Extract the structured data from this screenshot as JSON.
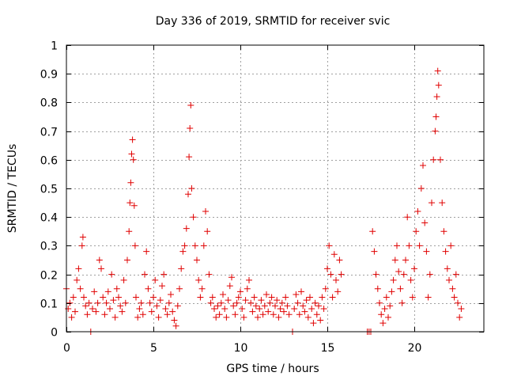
{
  "chart_data": {
    "type": "scatter",
    "title": "Day 336 of 2019, SRMTID for receiver svic",
    "xlabel": "GPS time / hours",
    "ylabel": "SRMTID / TECUs",
    "xlim": [
      0,
      24
    ],
    "ylim": [
      0,
      1
    ],
    "xticks": [
      0,
      5,
      10,
      15,
      20
    ],
    "yticks": [
      0,
      0.1,
      0.2,
      0.3,
      0.4,
      0.5,
      0.6,
      0.7,
      0.8,
      0.9,
      1
    ],
    "grid": true,
    "marker": "+",
    "color": "#e00000",
    "series": [
      {
        "name": "SRMTID",
        "points": [
          [
            0.0,
            0.15
          ],
          [
            0.1,
            0.08
          ],
          [
            0.2,
            0.1
          ],
          [
            0.3,
            0.05
          ],
          [
            0.4,
            0.12
          ],
          [
            0.5,
            0.07
          ],
          [
            0.6,
            0.18
          ],
          [
            0.7,
            0.22
          ],
          [
            0.8,
            0.15
          ],
          [
            0.9,
            0.3
          ],
          [
            0.95,
            0.33
          ],
          [
            1.0,
            0.12
          ],
          [
            1.1,
            0.09
          ],
          [
            1.2,
            0.06
          ],
          [
            1.3,
            0.1
          ],
          [
            1.4,
            0.0
          ],
          [
            1.5,
            0.08
          ],
          [
            1.6,
            0.14
          ],
          [
            1.7,
            0.07
          ],
          [
            1.8,
            0.1
          ],
          [
            1.9,
            0.25
          ],
          [
            2.0,
            0.22
          ],
          [
            2.1,
            0.12
          ],
          [
            2.2,
            0.06
          ],
          [
            2.3,
            0.1
          ],
          [
            2.4,
            0.14
          ],
          [
            2.5,
            0.08
          ],
          [
            2.6,
            0.2
          ],
          [
            2.7,
            0.11
          ],
          [
            2.8,
            0.05
          ],
          [
            2.9,
            0.15
          ],
          [
            3.0,
            0.12
          ],
          [
            3.1,
            0.09
          ],
          [
            3.2,
            0.07
          ],
          [
            3.3,
            0.18
          ],
          [
            3.4,
            0.1
          ],
          [
            3.5,
            0.25
          ],
          [
            3.6,
            0.35
          ],
          [
            3.65,
            0.45
          ],
          [
            3.7,
            0.52
          ],
          [
            3.75,
            0.62
          ],
          [
            3.8,
            0.67
          ],
          [
            3.85,
            0.6
          ],
          [
            3.9,
            0.44
          ],
          [
            3.95,
            0.3
          ],
          [
            4.0,
            0.12
          ],
          [
            4.1,
            0.05
          ],
          [
            4.2,
            0.08
          ],
          [
            4.3,
            0.1
          ],
          [
            4.4,
            0.06
          ],
          [
            4.5,
            0.2
          ],
          [
            4.6,
            0.28
          ],
          [
            4.7,
            0.15
          ],
          [
            4.8,
            0.1
          ],
          [
            4.9,
            0.07
          ],
          [
            5.0,
            0.12
          ],
          [
            5.1,
            0.18
          ],
          [
            5.2,
            0.09
          ],
          [
            5.3,
            0.05
          ],
          [
            5.4,
            0.11
          ],
          [
            5.5,
            0.16
          ],
          [
            5.6,
            0.2
          ],
          [
            5.7,
            0.08
          ],
          [
            5.8,
            0.06
          ],
          [
            5.9,
            0.1
          ],
          [
            6.0,
            0.13
          ],
          [
            6.1,
            0.07
          ],
          [
            6.2,
            0.04
          ],
          [
            6.3,
            0.02
          ],
          [
            6.4,
            0.09
          ],
          [
            6.5,
            0.15
          ],
          [
            6.6,
            0.22
          ],
          [
            6.7,
            0.28
          ],
          [
            6.8,
            0.3
          ],
          [
            6.9,
            0.36
          ],
          [
            7.0,
            0.48
          ],
          [
            7.05,
            0.61
          ],
          [
            7.1,
            0.71
          ],
          [
            7.15,
            0.79
          ],
          [
            7.2,
            0.5
          ],
          [
            7.3,
            0.4
          ],
          [
            7.4,
            0.3
          ],
          [
            7.5,
            0.25
          ],
          [
            7.6,
            0.18
          ],
          [
            7.7,
            0.12
          ],
          [
            7.8,
            0.15
          ],
          [
            7.9,
            0.3
          ],
          [
            8.0,
            0.42
          ],
          [
            8.1,
            0.35
          ],
          [
            8.2,
            0.2
          ],
          [
            8.3,
            0.1
          ],
          [
            8.4,
            0.12
          ],
          [
            8.5,
            0.08
          ],
          [
            8.6,
            0.05
          ],
          [
            8.7,
            0.09
          ],
          [
            8.8,
            0.06
          ],
          [
            8.9,
            0.1
          ],
          [
            9.0,
            0.13
          ],
          [
            9.1,
            0.08
          ],
          [
            9.2,
            0.05
          ],
          [
            9.3,
            0.11
          ],
          [
            9.4,
            0.16
          ],
          [
            9.5,
            0.19
          ],
          [
            9.6,
            0.09
          ],
          [
            9.7,
            0.06
          ],
          [
            9.8,
            0.1
          ],
          [
            9.9,
            0.12
          ],
          [
            10.0,
            0.14
          ],
          [
            10.1,
            0.08
          ],
          [
            10.2,
            0.05
          ],
          [
            10.3,
            0.11
          ],
          [
            10.4,
            0.15
          ],
          [
            10.5,
            0.18
          ],
          [
            10.6,
            0.1
          ],
          [
            10.7,
            0.07
          ],
          [
            10.8,
            0.12
          ],
          [
            10.9,
            0.09
          ],
          [
            11.0,
            0.05
          ],
          [
            11.1,
            0.08
          ],
          [
            11.2,
            0.11
          ],
          [
            11.3,
            0.06
          ],
          [
            11.4,
            0.09
          ],
          [
            11.5,
            0.13
          ],
          [
            11.6,
            0.07
          ],
          [
            11.7,
            0.1
          ],
          [
            11.8,
            0.12
          ],
          [
            11.9,
            0.06
          ],
          [
            12.0,
            0.09
          ],
          [
            12.1,
            0.11
          ],
          [
            12.2,
            0.05
          ],
          [
            12.3,
            0.08
          ],
          [
            12.4,
            0.1
          ],
          [
            12.5,
            0.07
          ],
          [
            12.6,
            0.12
          ],
          [
            12.7,
            0.09
          ],
          [
            12.8,
            0.06
          ],
          [
            13.0,
            0.0
          ],
          [
            13.1,
            0.08
          ],
          [
            13.2,
            0.13
          ],
          [
            13.3,
            0.1
          ],
          [
            13.4,
            0.06
          ],
          [
            13.5,
            0.14
          ],
          [
            13.6,
            0.09
          ],
          [
            13.7,
            0.07
          ],
          [
            13.8,
            0.11
          ],
          [
            13.9,
            0.05
          ],
          [
            14.0,
            0.12
          ],
          [
            14.1,
            0.08
          ],
          [
            14.2,
            0.03
          ],
          [
            14.3,
            0.1
          ],
          [
            14.4,
            0.06
          ],
          [
            14.5,
            0.09
          ],
          [
            14.6,
            0.04
          ],
          [
            14.7,
            0.12
          ],
          [
            14.8,
            0.08
          ],
          [
            14.9,
            0.15
          ],
          [
            15.0,
            0.22
          ],
          [
            15.1,
            0.3
          ],
          [
            15.2,
            0.2
          ],
          [
            15.3,
            0.12
          ],
          [
            15.4,
            0.27
          ],
          [
            15.5,
            0.18
          ],
          [
            15.6,
            0.14
          ],
          [
            15.7,
            0.25
          ],
          [
            15.8,
            0.2
          ],
          [
            17.3,
            0.0
          ],
          [
            17.4,
            0.0
          ],
          [
            17.5,
            0.0
          ],
          [
            17.6,
            0.35
          ],
          [
            17.7,
            0.28
          ],
          [
            17.8,
            0.2
          ],
          [
            17.9,
            0.15
          ],
          [
            18.0,
            0.1
          ],
          [
            18.1,
            0.06
          ],
          [
            18.2,
            0.03
          ],
          [
            18.3,
            0.08
          ],
          [
            18.4,
            0.12
          ],
          [
            18.5,
            0.05
          ],
          [
            18.6,
            0.09
          ],
          [
            18.7,
            0.14
          ],
          [
            18.8,
            0.18
          ],
          [
            18.9,
            0.25
          ],
          [
            19.0,
            0.3
          ],
          [
            19.1,
            0.21
          ],
          [
            19.2,
            0.15
          ],
          [
            19.3,
            0.1
          ],
          [
            19.4,
            0.2
          ],
          [
            19.5,
            0.25
          ],
          [
            19.6,
            0.4
          ],
          [
            19.7,
            0.3
          ],
          [
            19.8,
            0.18
          ],
          [
            19.9,
            0.12
          ],
          [
            20.0,
            0.22
          ],
          [
            20.1,
            0.35
          ],
          [
            20.2,
            0.42
          ],
          [
            20.3,
            0.3
          ],
          [
            20.4,
            0.5
          ],
          [
            20.5,
            0.58
          ],
          [
            20.6,
            0.38
          ],
          [
            20.7,
            0.28
          ],
          [
            20.8,
            0.12
          ],
          [
            20.9,
            0.2
          ],
          [
            21.0,
            0.45
          ],
          [
            21.1,
            0.6
          ],
          [
            21.2,
            0.7
          ],
          [
            21.25,
            0.75
          ],
          [
            21.3,
            0.82
          ],
          [
            21.35,
            0.91
          ],
          [
            21.4,
            0.86
          ],
          [
            21.5,
            0.6
          ],
          [
            21.6,
            0.45
          ],
          [
            21.7,
            0.35
          ],
          [
            21.8,
            0.28
          ],
          [
            21.9,
            0.22
          ],
          [
            22.0,
            0.18
          ],
          [
            22.1,
            0.3
          ],
          [
            22.2,
            0.15
          ],
          [
            22.3,
            0.12
          ],
          [
            22.4,
            0.2
          ],
          [
            22.5,
            0.1
          ],
          [
            22.6,
            0.05
          ],
          [
            22.7,
            0.08
          ]
        ]
      }
    ]
  }
}
